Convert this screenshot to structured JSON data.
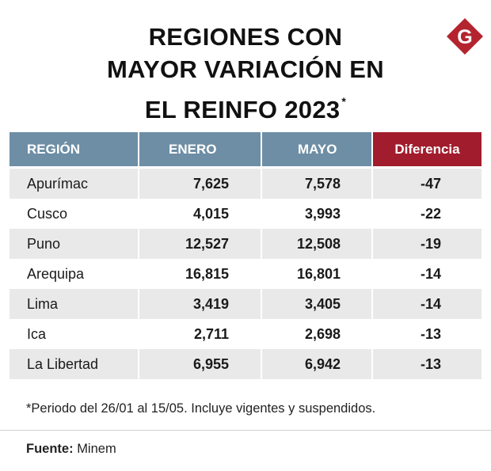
{
  "header": {
    "title_lines": [
      "REGIONES CON",
      "MAYOR VARIACIÓN EN",
      "EL REINFO 2023"
    ],
    "title_mark": "*"
  },
  "logo": {
    "letter": "G",
    "color": "#b3242f"
  },
  "colors": {
    "header_blue": "#6d8ea5",
    "header_red": "#a11c2c",
    "row_shade": "#e9e9e9"
  },
  "chart_data": {
    "type": "table",
    "columns": [
      "REGIÓN",
      "ENERO",
      "MAYO",
      "Diferencia"
    ],
    "rows": [
      [
        "Apurímac",
        "7,625",
        "7,578",
        "-47"
      ],
      [
        "Cusco",
        "4,015",
        "3,993",
        "-22"
      ],
      [
        "Puno",
        "12,527",
        "12,508",
        "-19"
      ],
      [
        "Arequipa",
        "16,815",
        "16,801",
        "-14"
      ],
      [
        "Lima",
        "3,419",
        "3,405",
        "-14"
      ],
      [
        "Ica",
        "2,711",
        "2,698",
        "-13"
      ],
      [
        "La Libertad",
        "6,955",
        "6,942",
        "-13"
      ]
    ]
  },
  "footer": {
    "note": "*Periodo del 26/01 al 15/05. Incluye vigentes y suspendidos.",
    "source_label": "Fuente:",
    "source_value": "Minem"
  }
}
